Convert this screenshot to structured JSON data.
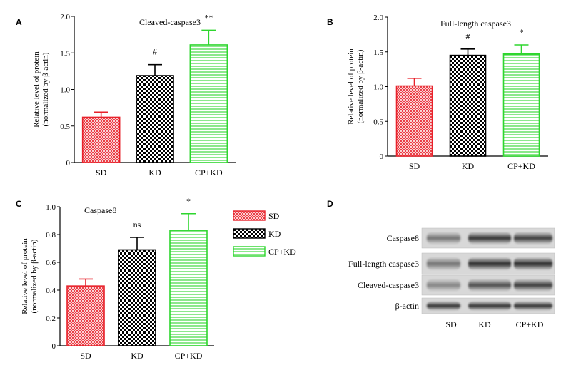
{
  "colors": {
    "SD": "#e8222b",
    "KD": "#000000",
    "CP+KD": "#2ed62e",
    "axis": "#000000"
  },
  "legend": {
    "items": [
      {
        "label": "SD",
        "color": "#e8222b",
        "pattern": "crosshatch"
      },
      {
        "label": "KD",
        "color": "#000000",
        "pattern": "checker"
      },
      {
        "label": "CP+KD",
        "color": "#2ed62e",
        "pattern": "hlines"
      }
    ]
  },
  "blot": {
    "letter": "D",
    "bands": [
      "Caspase8",
      "Full-length caspase3",
      "Cleaved-caspase3",
      "β-actin"
    ],
    "lanes": [
      "SD",
      "KD",
      "CP+KD"
    ]
  },
  "chart_data": [
    {
      "letter": "A",
      "type": "bar",
      "title": "Cleaved-caspase3",
      "ylabel": [
        "Relative level of protein",
        "(normalized by β-actin)"
      ],
      "categories": [
        "SD",
        "KD",
        "CP+KD"
      ],
      "values": [
        0.62,
        1.19,
        1.61
      ],
      "errors": [
        0.07,
        0.15,
        0.2
      ],
      "significance": [
        "",
        "#",
        "**"
      ],
      "ylim": [
        0,
        2.0
      ],
      "yticks": [
        "0",
        "0.5",
        "1.0",
        "1.5",
        "2.0"
      ],
      "ytick_values": [
        0,
        0.5,
        1.0,
        1.5,
        2.0
      ]
    },
    {
      "letter": "B",
      "type": "bar",
      "title": "Full-length caspase3",
      "ylabel": [
        "Relative level of protein",
        "(normalized by β-actin)"
      ],
      "categories": [
        "SD",
        "KD",
        "CP+KD"
      ],
      "values": [
        1.01,
        1.45,
        1.47
      ],
      "errors": [
        0.11,
        0.09,
        0.13
      ],
      "significance": [
        "",
        "#",
        "*"
      ],
      "ylim": [
        0,
        2.0
      ],
      "yticks": [
        "0",
        "0.5",
        "1.0",
        "1.5",
        "2.0"
      ],
      "ytick_values": [
        0,
        0.5,
        1.0,
        1.5,
        2.0
      ]
    },
    {
      "letter": "C",
      "type": "bar",
      "title": "Caspase8",
      "ylabel": [
        "Relative level of protein",
        "(normalized by β-actin)"
      ],
      "categories": [
        "SD",
        "KD",
        "CP+KD"
      ],
      "values": [
        0.43,
        0.69,
        0.83
      ],
      "errors": [
        0.05,
        0.09,
        0.12
      ],
      "significance": [
        "",
        "ns",
        "*"
      ],
      "ylim": [
        0,
        1.0
      ],
      "yticks": [
        "0",
        "0.2",
        "0.4",
        "0.6",
        "0.8",
        "1.0"
      ],
      "ytick_values": [
        0,
        0.2,
        0.4,
        0.6,
        0.8,
        1.0
      ]
    }
  ]
}
